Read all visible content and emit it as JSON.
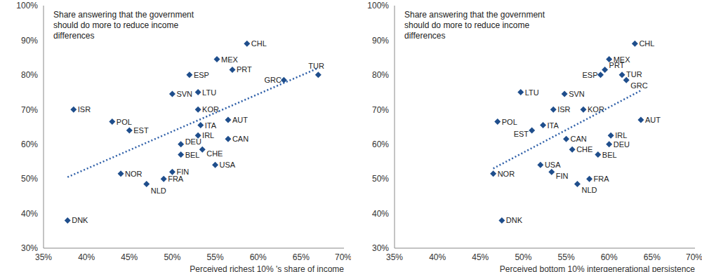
{
  "chart_data": [
    {
      "type": "scatter",
      "annotation": "Share answering that the government should do more to reduce income differences",
      "x_label": "Perceived richest 10% 's share of income",
      "xlim": [
        35,
        70
      ],
      "xticks": [
        {
          "value": 35,
          "label": "35%"
        },
        {
          "value": 40,
          "label": "40%"
        },
        {
          "value": 45,
          "label": "45%"
        },
        {
          "value": 50,
          "label": "50%"
        },
        {
          "value": 55,
          "label": "55%"
        },
        {
          "value": 60,
          "label": "60%"
        },
        {
          "value": 65,
          "label": "65%"
        },
        {
          "value": 70,
          "label": "70%"
        }
      ],
      "ylim": [
        30,
        100
      ],
      "yticks": [
        {
          "value": 30,
          "label": "30%"
        },
        {
          "value": 40,
          "label": "40%"
        },
        {
          "value": 50,
          "label": "50%"
        },
        {
          "value": 60,
          "label": "60%"
        },
        {
          "value": 70,
          "label": "70%"
        },
        {
          "value": 80,
          "label": "80%"
        },
        {
          "value": 90,
          "label": "90%"
        },
        {
          "value": 100,
          "label": "100%"
        }
      ],
      "series": [
        {
          "type": "scatter",
          "marker": "diamond",
          "color": "#1F4E8C",
          "labels": [
            "CHL",
            "MEX",
            "PRT",
            "ESP",
            "TUR",
            "GRC",
            "SVN",
            "LTU",
            "ISR",
            "KOR",
            "POL",
            "AUT",
            "EST",
            "ITA",
            "IRL",
            "CAN",
            "DEU",
            "CHE",
            "BEL",
            "USA",
            "NOR",
            "FIN",
            "FRA",
            "NLD",
            "DNK"
          ],
          "x": [
            58.7,
            55.2,
            57,
            52,
            67,
            63,
            50,
            53,
            38.5,
            53,
            43,
            56.5,
            45,
            53.3,
            53,
            56.5,
            51,
            53.5,
            51,
            55,
            44,
            50,
            49,
            47,
            37.8
          ],
          "values": [
            89,
            84.5,
            81.5,
            80,
            80,
            78.5,
            74.5,
            75,
            70,
            70,
            66.5,
            67,
            64,
            65.5,
            62.5,
            61.5,
            60,
            58.5,
            57,
            54,
            51.5,
            52,
            50,
            48.5,
            38
          ]
        },
        {
          "type": "line",
          "line_style": "dotted",
          "color": "#2E5FA8",
          "x": [
            37.8,
            67
          ],
          "values": [
            50.5,
            82
          ]
        }
      ]
    },
    {
      "type": "scatter",
      "annotation": "Share answering that the government should do more to reduce income differences",
      "x_label": "Perceived bottom 10% intergenerational persistence",
      "xlim": [
        35,
        70
      ],
      "xticks": [
        {
          "value": 35,
          "label": "35%"
        },
        {
          "value": 40,
          "label": "40%"
        },
        {
          "value": 45,
          "label": "45%"
        },
        {
          "value": 50,
          "label": "50%"
        },
        {
          "value": 55,
          "label": "55%"
        },
        {
          "value": 60,
          "label": "60%"
        },
        {
          "value": 65,
          "label": "65%"
        },
        {
          "value": 70,
          "label": "70%"
        }
      ],
      "ylim": [
        30,
        100
      ],
      "yticks": [
        {
          "value": 30,
          "label": "30%"
        },
        {
          "value": 40,
          "label": "40%"
        },
        {
          "value": 50,
          "label": "50%"
        },
        {
          "value": 60,
          "label": "60%"
        },
        {
          "value": 70,
          "label": "70%"
        },
        {
          "value": 80,
          "label": "80%"
        },
        {
          "value": 90,
          "label": "90%"
        },
        {
          "value": 100,
          "label": "100%"
        }
      ],
      "series": [
        {
          "type": "scatter",
          "marker": "diamond",
          "color": "#1F4E8C",
          "labels": [
            "CHL",
            "MEX",
            "PRT",
            "ESP",
            "TUR",
            "GRC",
            "SVN",
            "LTU",
            "ISR",
            "KOR",
            "POL",
            "AUT",
            "EST",
            "ITA",
            "IRL",
            "CAN",
            "DEU",
            "CHE",
            "BEL",
            "USA",
            "NOR",
            "FIN",
            "FRA",
            "NLD",
            "DNK"
          ],
          "x": [
            63,
            60,
            59.5,
            59,
            61.5,
            62,
            54.8,
            49.7,
            53.5,
            57,
            47,
            63.7,
            51,
            52.3,
            60.2,
            55,
            60,
            55.7,
            58.7,
            52,
            46.5,
            53.3,
            57.7,
            56.3,
            47.5
          ],
          "values": [
            89,
            84.5,
            81.5,
            80,
            80,
            78.5,
            74.5,
            75,
            70,
            70,
            66.5,
            67,
            64,
            65.5,
            62.5,
            61.5,
            60,
            58.5,
            57,
            54,
            51.5,
            52,
            50,
            48.5,
            38
          ]
        },
        {
          "type": "line",
          "line_style": "dotted",
          "color": "#2E5FA8",
          "x": [
            46.5,
            63.7
          ],
          "values": [
            53,
            75.5
          ]
        }
      ]
    }
  ]
}
